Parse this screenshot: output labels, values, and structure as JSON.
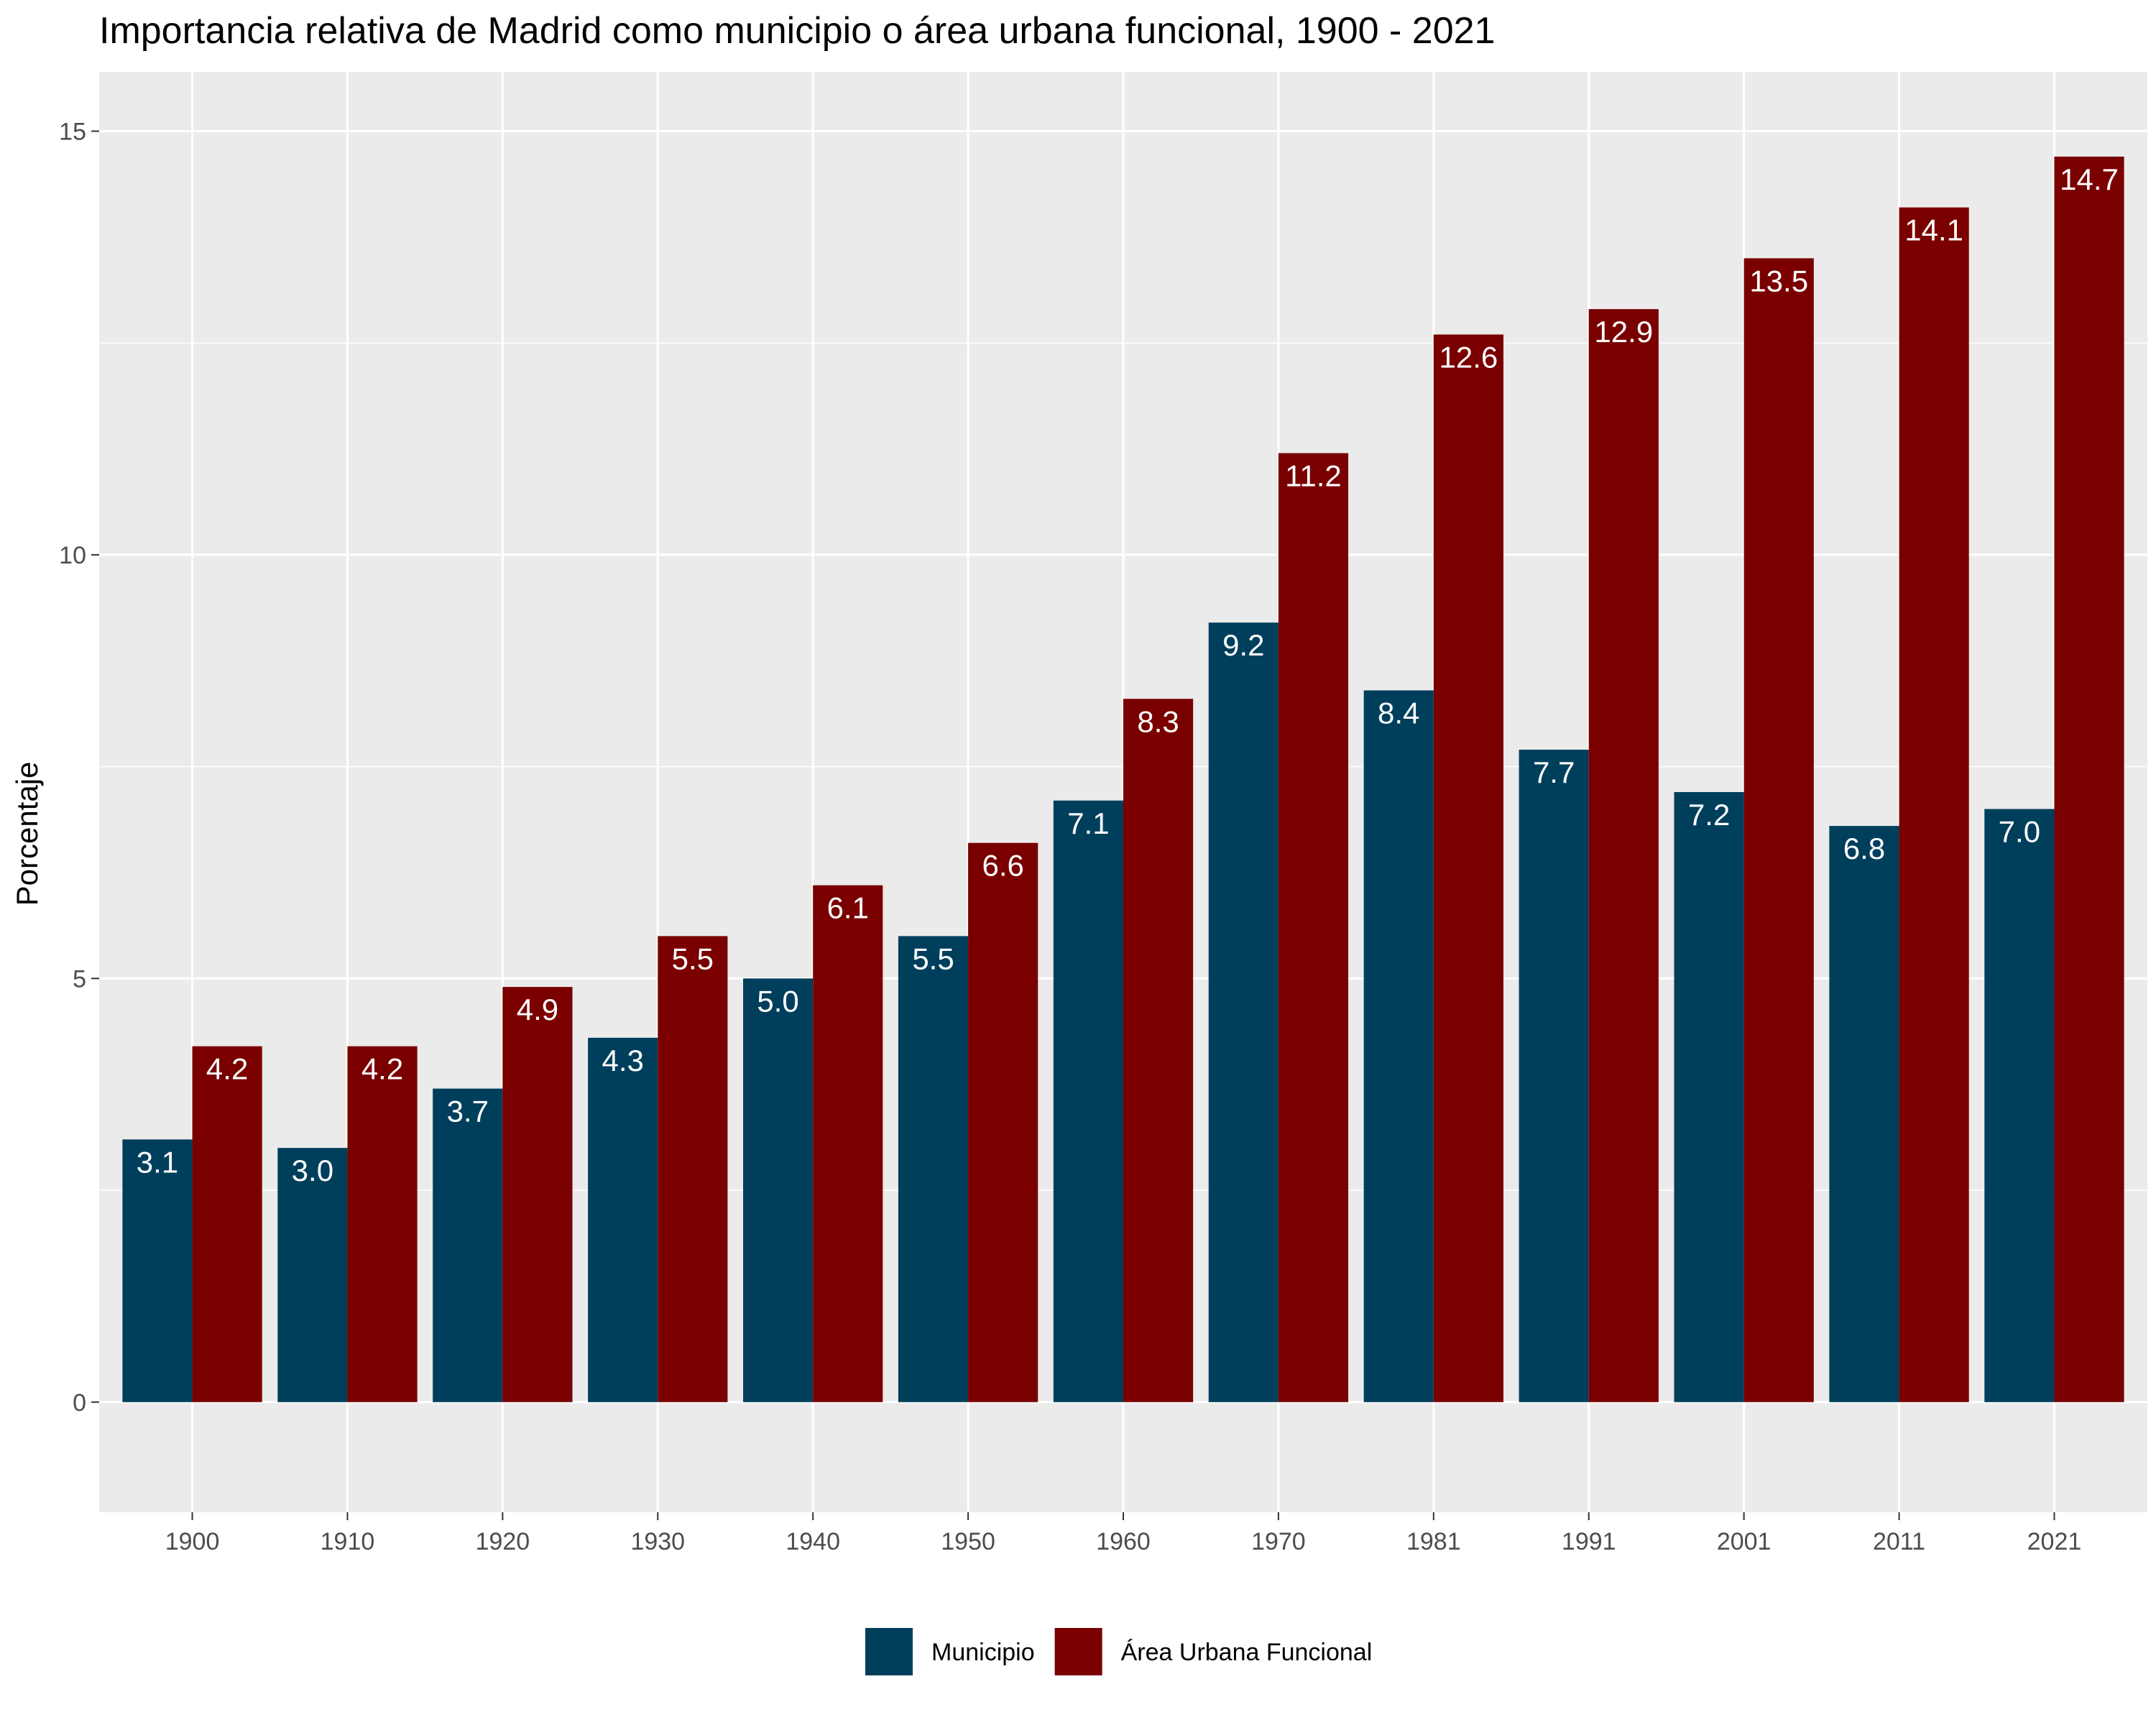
{
  "chart_data": {
    "type": "bar",
    "title": "Importancia relativa de Madrid como municipio o área urbana funcional, 1900 - 2021",
    "xlabel": "",
    "ylabel": "Porcentaje",
    "ylim": [
      -1.3,
      15.7
    ],
    "yticks": [
      0,
      5,
      10,
      15
    ],
    "grid": true,
    "legend_position": "bottom",
    "categories": [
      "1900",
      "1910",
      "1920",
      "1930",
      "1940",
      "1950",
      "1960",
      "1970",
      "1981",
      "1991",
      "2001",
      "2011",
      "2021"
    ],
    "series": [
      {
        "name": "Municipio",
        "color": "#003f5c",
        "values": [
          3.1,
          3.0,
          3.7,
          4.3,
          5.0,
          5.5,
          7.1,
          9.2,
          8.4,
          7.7,
          7.2,
          6.8,
          7.0
        ],
        "labels": [
          "3.1",
          "3.0",
          "3.7",
          "4.3",
          "5.0",
          "5.5",
          "7.1",
          "9.2",
          "8.4",
          "7.7",
          "7.2",
          "6.8",
          "7.0"
        ]
      },
      {
        "name": "Área Urbana Funcional",
        "color": "#7a0000",
        "values": [
          4.2,
          4.2,
          4.9,
          5.5,
          6.1,
          6.6,
          8.3,
          11.2,
          12.6,
          12.9,
          13.5,
          14.1,
          14.7
        ],
        "labels": [
          "4.2",
          "4.2",
          "4.9",
          "5.5",
          "6.1",
          "6.6",
          "8.3",
          "11.2",
          "12.6",
          "12.9",
          "13.5",
          "14.1",
          "14.7"
        ]
      }
    ],
    "panel_background": "#ebebeb",
    "grid_color": "#ffffff"
  }
}
